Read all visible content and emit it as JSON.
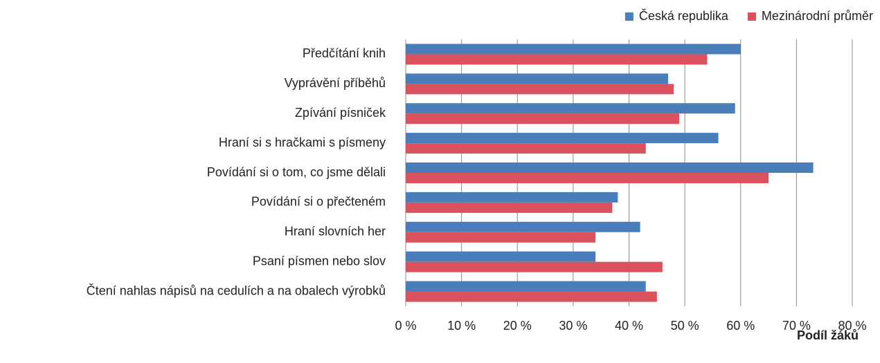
{
  "chart_data": {
    "type": "hbar",
    "categories": [
      "Předčítání knih",
      "Vyprávění příběhů",
      "Zpívání písniček",
      "Hraní si s hračkami s písmeny",
      "Povídání si o tom, co jsme dělali",
      "Povídání si o přečteném",
      "Hraní slovních her",
      "Psaní písmen nebo slov",
      "Čtení nahlas nápisů na cedulích a na obalech výrobků"
    ],
    "series": [
      {
        "name": "Česká republika",
        "color": "#4a7ebb",
        "values": [
          60,
          47,
          59,
          56,
          73,
          38,
          42,
          34,
          43
        ]
      },
      {
        "name": "Mezinárodní průměr",
        "color": "#d9525e",
        "values": [
          54,
          48,
          49,
          43,
          65,
          37,
          34,
          46,
          45
        ]
      }
    ],
    "xlim": [
      0,
      80
    ],
    "xticks": [
      {
        "value": 0,
        "label": "0 %"
      },
      {
        "value": 10,
        "label": "10 %"
      },
      {
        "value": 20,
        "label": "20 %"
      },
      {
        "value": 30,
        "label": "30 %"
      },
      {
        "value": 40,
        "label": "40 %"
      },
      {
        "value": 50,
        "label": "50 %"
      },
      {
        "value": 60,
        "label": "60 %"
      },
      {
        "value": 70,
        "label": "70 %"
      },
      {
        "value": 80,
        "label": "80 %"
      }
    ],
    "x_label": "Podíl žáků",
    "grid": true,
    "legend": "top-right"
  }
}
